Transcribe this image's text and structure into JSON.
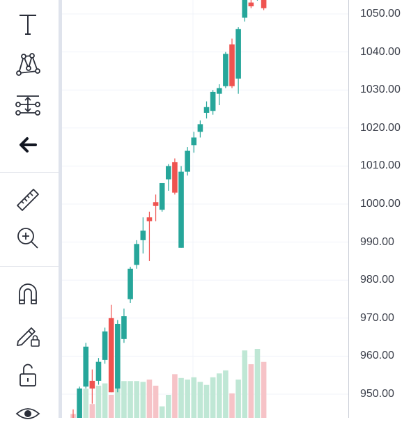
{
  "toolbar": {
    "tools": [
      {
        "name": "text-tool",
        "icon": "text-t-icon"
      },
      {
        "name": "pattern-tool",
        "icon": "xabcd-pattern-icon"
      },
      {
        "name": "measure-tool",
        "icon": "fib-levels-icon"
      },
      {
        "name": "back-button",
        "icon": "arrow-left-icon"
      },
      {
        "name": "ruler-tool",
        "icon": "ruler-icon"
      },
      {
        "name": "zoom-in-tool",
        "icon": "zoom-in-icon"
      },
      {
        "name": "magnet-tool",
        "icon": "magnet-icon"
      },
      {
        "name": "lock-drawings-tool",
        "icon": "pencil-lock-icon"
      },
      {
        "name": "lock-all-tool",
        "icon": "unlock-icon"
      },
      {
        "name": "hide-tool",
        "icon": "eye-icon"
      }
    ]
  },
  "price_axis": {
    "labels": [
      "1050.00",
      "1040.00",
      "1030.00",
      "1020.00",
      "1010.00",
      "1000.00",
      "990.00",
      "980.00",
      "970.00",
      "960.00",
      "950.00"
    ]
  },
  "colors": {
    "up": "#26a69a",
    "down": "#ef5350",
    "up_volume": "#bfe7d5",
    "down_volume": "#f6c3c7",
    "grid": "#f0f3fa"
  },
  "chart_data": {
    "type": "candlestick",
    "ylim": [
      943,
      1053
    ],
    "candles": [
      {
        "o": 943.0,
        "h": 946.0,
        "l": 940.0,
        "c": 941.0
      },
      {
        "o": 943.0,
        "h": 952.0,
        "l": 941.0,
        "c": 951.5
      },
      {
        "o": 952.0,
        "h": 963.5,
        "l": 951.5,
        "c": 962.5
      },
      {
        "o": 953.5,
        "h": 956.5,
        "l": 947.5,
        "c": 951.5
      },
      {
        "o": 953.5,
        "h": 959.5,
        "l": 952.5,
        "c": 958.5
      },
      {
        "o": 959.0,
        "h": 967.5,
        "l": 958.0,
        "c": 966.5
      },
      {
        "o": 970.0,
        "h": 973.5,
        "l": 950.5,
        "c": 950.5
      },
      {
        "o": 951.5,
        "h": 969.5,
        "l": 950.5,
        "c": 968.5
      },
      {
        "o": 964.5,
        "h": 972.5,
        "l": 963.5,
        "c": 970.5
      },
      {
        "o": 975.0,
        "h": 983.5,
        "l": 974.0,
        "c": 983.0
      },
      {
        "o": 984.0,
        "h": 990.5,
        "l": 983.0,
        "c": 989.5
      },
      {
        "o": 990.5,
        "h": 996.5,
        "l": 987.0,
        "c": 993.0
      },
      {
        "o": 996.5,
        "h": 998.0,
        "l": 985.0,
        "c": 995.5
      },
      {
        "o": 1000.5,
        "h": 1002.5,
        "l": 995.5,
        "c": 999.5
      },
      {
        "o": 998.5,
        "h": 1005.5,
        "l": 998.0,
        "c": 1005.5
      },
      {
        "o": 1006.5,
        "h": 1010.5,
        "l": 1003.5,
        "c": 1010.0
      },
      {
        "o": 1011.0,
        "h": 1012.0,
        "l": 1002.5,
        "c": 1003.0
      },
      {
        "o": 988.5,
        "h": 1010.0,
        "l": 988.5,
        "c": 1008.5
      },
      {
        "o": 1008.5,
        "h": 1015.0,
        "l": 1007.5,
        "c": 1014.0
      },
      {
        "o": 1015.5,
        "h": 1019.0,
        "l": 1013.5,
        "c": 1017.5
      },
      {
        "o": 1019.0,
        "h": 1022.0,
        "l": 1017.5,
        "c": 1021.0
      },
      {
        "o": 1024.0,
        "h": 1027.0,
        "l": 1022.5,
        "c": 1025.5
      },
      {
        "o": 1024.5,
        "h": 1030.0,
        "l": 1023.5,
        "c": 1029.5
      },
      {
        "o": 1029.0,
        "h": 1031.5,
        "l": 1026.0,
        "c": 1030.5
      },
      {
        "o": 1031.0,
        "h": 1040.0,
        "l": 1030.5,
        "c": 1039.5
      },
      {
        "o": 1042.0,
        "h": 1043.5,
        "l": 1030.5,
        "c": 1031.0
      },
      {
        "o": 1033.0,
        "h": 1046.5,
        "l": 1029.0,
        "c": 1046.0
      },
      {
        "o": 1049.0,
        "h": 1056.0,
        "l": 1048.0,
        "c": 1055.0
      },
      {
        "o": 1053.0,
        "h": 1054.0,
        "l": 1051.5,
        "c": 1052.0
      },
      {
        "o": 1054.0,
        "h": 1056.0,
        "l": 1053.5,
        "c": 1055.0
      },
      {
        "o": 1054.0,
        "h": 1055.0,
        "l": 1051.0,
        "c": 1051.5
      }
    ],
    "volume": [
      0.05,
      0.3,
      0.38,
      0.18,
      0.42,
      0.45,
      0.3,
      0.43,
      0.48,
      0.48,
      0.48,
      0.47,
      0.5,
      0.42,
      0.15,
      0.3,
      0.57,
      0.52,
      0.5,
      0.53,
      0.47,
      0.43,
      0.53,
      0.58,
      0.62,
      0.32,
      0.5,
      0.88,
      0.7,
      0.9,
      0.73
    ]
  }
}
